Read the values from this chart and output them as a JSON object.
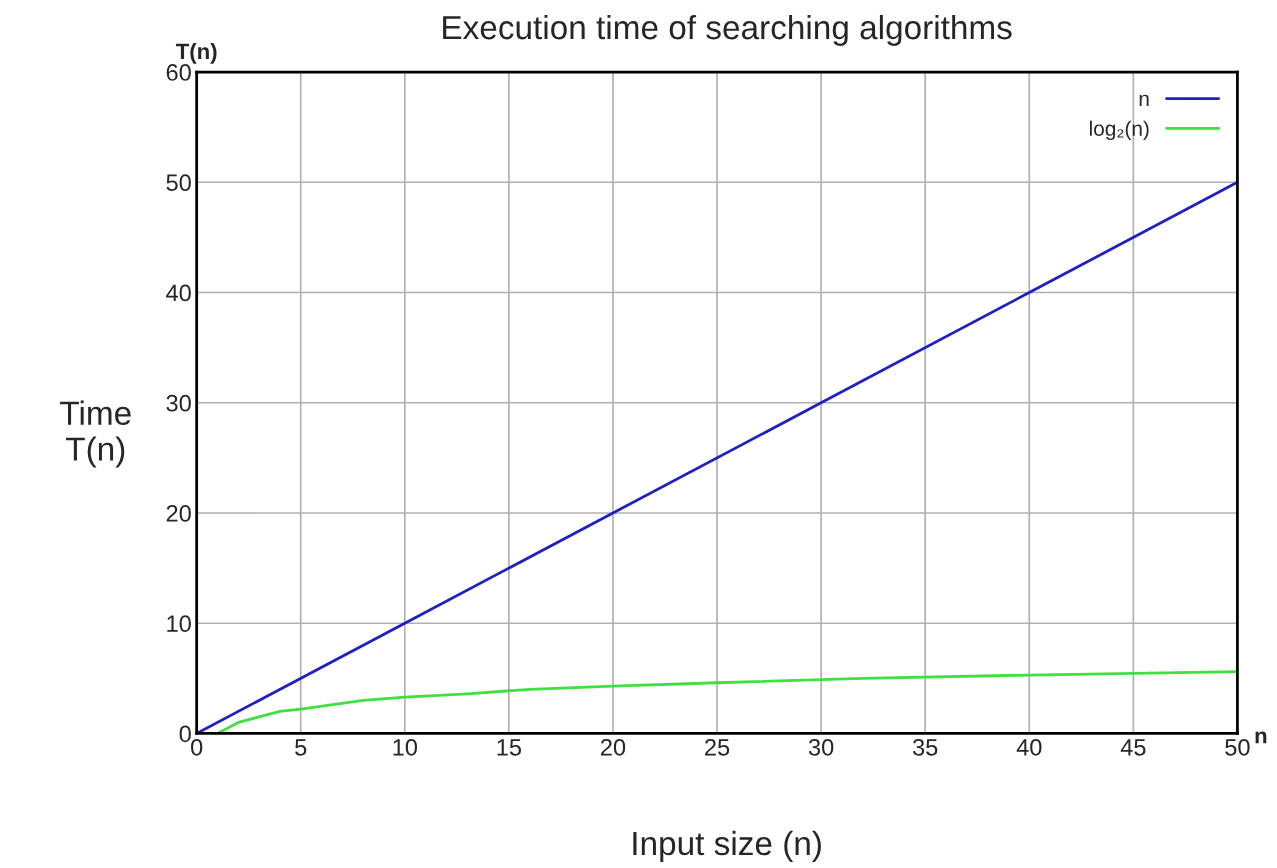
{
  "chart_data": {
    "type": "line",
    "title": "Execution time of searching algorithms",
    "xlabel": "Input size (n)",
    "ylabel": "Time\nT(n)",
    "annotations": [
      "T(n)",
      "n"
    ],
    "series": [
      {
        "name": "n",
        "color": "#2020c0",
        "x": [
          0,
          10,
          20,
          30,
          40,
          50
        ],
        "values": [
          0,
          10,
          20,
          30,
          40,
          50
        ]
      },
      {
        "name": "log₂(n)",
        "color": "#40e040",
        "x": [
          1,
          2,
          3,
          4,
          5,
          8,
          10,
          13,
          16,
          20,
          25,
          32,
          40,
          50
        ],
        "values": [
          0,
          1,
          1.5,
          2,
          2.2,
          3,
          3.3,
          3.6,
          4,
          4.3,
          4.6,
          5,
          5.3,
          5.6
        ]
      }
    ],
    "xlim": [
      0,
      50
    ],
    "ylim": [
      0,
      60
    ],
    "xticks": [
      0,
      5,
      10,
      15,
      20,
      25,
      30,
      35,
      40,
      45,
      50
    ],
    "yticks": [
      0,
      10,
      20,
      30,
      40,
      50,
      60
    ],
    "grid": true,
    "legend": "top right",
    "marker": "none",
    "line_style": "solid"
  }
}
